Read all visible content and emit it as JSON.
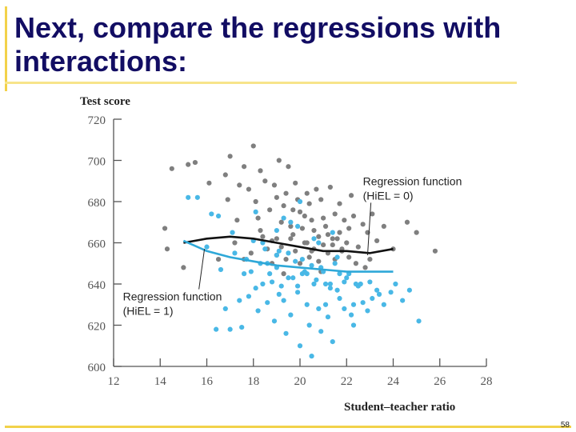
{
  "slide": {
    "title": "Next, compare the regressions with interactions:",
    "page_number": "58"
  },
  "colors": {
    "title": "#120d63",
    "accent": "#f2d24a",
    "hiel0_points": "#7f7f7f",
    "hiel1_points": "#49b8e6",
    "hiel0_line": "#111111",
    "hiel1_line": "#2ea8d8"
  },
  "chart_data": {
    "type": "scatter",
    "xlabel": "Student–teacher ratio",
    "ylabel": "Test score",
    "xlim": [
      12,
      28
    ],
    "ylim": [
      600,
      720
    ],
    "xticks": [
      "12",
      "14",
      "16",
      "18",
      "20",
      "22",
      "24",
      "26",
      "28"
    ],
    "yticks": [
      "600",
      "620",
      "640",
      "660",
      "680",
      "700",
      "720"
    ],
    "grid": false,
    "annotations": [
      {
        "text": "Regression function",
        "text2": "(HiEL = 0)",
        "x": 22.7,
        "y": 688,
        "target_x": 22.9,
        "target_y": 654
      },
      {
        "text": "Regression function",
        "text2": "(HiEL = 1)",
        "x": 12.4,
        "y": 632,
        "target_x": 15.9,
        "target_y": 657
      }
    ],
    "regression_lines": [
      {
        "name": "HiEL = 0",
        "x": [
          15,
          16,
          17,
          18,
          19,
          20,
          21,
          22,
          23,
          24
        ],
        "y": [
          660,
          662,
          663,
          662,
          660,
          658,
          656,
          656,
          655,
          657
        ]
      },
      {
        "name": "HiEL = 1",
        "x": [
          15,
          16,
          17,
          18,
          19,
          20,
          21,
          22,
          23,
          24
        ],
        "y": [
          661,
          656,
          653,
          651,
          649,
          648,
          647,
          646,
          646,
          646
        ]
      }
    ],
    "series": [
      {
        "name": "HiEL = 0",
        "x": [
          14.5,
          15.2,
          15.5,
          14.2,
          16.1,
          16.8,
          17.0,
          17.4,
          17.6,
          17.8,
          18.0,
          18.1,
          18.2,
          18.3,
          18.5,
          18.7,
          18.9,
          19.0,
          19.1,
          19.2,
          19.3,
          19.4,
          19.5,
          19.6,
          19.7,
          19.8,
          19.9,
          20.0,
          20.1,
          20.2,
          20.3,
          20.4,
          20.5,
          20.6,
          20.7,
          20.8,
          20.9,
          21.0,
          21.1,
          21.2,
          21.3,
          21.4,
          21.5,
          21.6,
          21.7,
          21.8,
          21.9,
          22.0,
          22.1,
          22.2,
          22.3,
          22.5,
          22.7,
          22.9,
          23.1,
          23.3,
          23.6,
          24.0,
          24.6,
          25.0,
          25.8,
          14.3,
          15.0,
          16.5,
          17.2,
          17.9,
          18.4,
          18.6,
          18.8,
          19.0,
          19.2,
          19.4,
          19.6,
          19.8,
          20.0,
          20.2,
          20.4,
          20.6,
          20.8,
          21.0,
          21.2,
          21.5,
          21.8,
          22.1,
          22.4,
          23.0,
          18.3,
          19.0,
          19.7,
          20.3,
          17.6,
          18.8,
          20.9,
          21.4,
          22.8,
          16.9,
          17.3,
          19.3,
          20.5,
          21.7
        ],
        "y": [
          696,
          698,
          699,
          667,
          689,
          693,
          702,
          688,
          697,
          686,
          707,
          680,
          672,
          695,
          690,
          676,
          688,
          682,
          700,
          670,
          678,
          684,
          697,
          668,
          676,
          689,
          681,
          675,
          667,
          673,
          684,
          679,
          671,
          666,
          686,
          663,
          681,
          672,
          668,
          664,
          687,
          659,
          674,
          662,
          679,
          656,
          671,
          660,
          667,
          683,
          673,
          658,
          669,
          665,
          674,
          661,
          668,
          657,
          670,
          665,
          656,
          657,
          648,
          652,
          660,
          655,
          663,
          657,
          661,
          654,
          658,
          652,
          662,
          656,
          650,
          660,
          653,
          657,
          651,
          659,
          655,
          652,
          657,
          653,
          650,
          652,
          666,
          662,
          664,
          660,
          652,
          650,
          646,
          662,
          648,
          681,
          671,
          645,
          656,
          665
        ]
      },
      {
        "name": "HiEL = 1",
        "x": [
          15.2,
          15.6,
          16.2,
          16.5,
          16.0,
          16.6,
          17.1,
          17.4,
          17.7,
          17.9,
          18.1,
          18.2,
          18.4,
          18.6,
          18.7,
          18.9,
          19.0,
          19.1,
          19.3,
          19.4,
          19.5,
          19.6,
          19.8,
          19.9,
          20.0,
          20.1,
          20.3,
          20.4,
          20.5,
          20.6,
          20.8,
          20.9,
          21.0,
          21.1,
          21.2,
          21.3,
          21.4,
          21.6,
          21.7,
          21.9,
          22.0,
          22.2,
          22.3,
          22.5,
          22.7,
          22.9,
          23.1,
          23.3,
          23.6,
          23.9,
          24.1,
          24.4,
          24.7,
          25.1,
          16.4,
          17.0,
          17.5,
          17.8,
          18.0,
          18.3,
          18.5,
          18.8,
          19.0,
          19.2,
          19.5,
          19.7,
          19.9,
          20.1,
          20.3,
          20.5,
          20.7,
          20.9,
          21.1,
          21.3,
          21.5,
          21.7,
          21.9,
          22.1,
          22.3,
          22.6,
          23.0,
          23.4,
          18.6,
          19.3,
          19.9,
          20.6,
          21.4,
          18.1,
          19.0,
          20.0,
          20.8,
          21.6,
          22.4,
          16.8,
          17.2,
          17.6,
          18.4,
          19.1,
          19.6,
          20.2
        ],
        "y": [
          682,
          682,
          674,
          673,
          658,
          647,
          665,
          632,
          652,
          646,
          638,
          627,
          660,
          631,
          645,
          622,
          666,
          656,
          632,
          616,
          643,
          625,
          651,
          636,
          610,
          645,
          630,
          620,
          605,
          640,
          628,
          617,
          646,
          630,
          624,
          640,
          612,
          637,
          633,
          628,
          643,
          625,
          620,
          639,
          631,
          627,
          633,
          637,
          630,
          636,
          640,
          632,
          637,
          622,
          618,
          618,
          619,
          634,
          661,
          650,
          657,
          641,
          648,
          639,
          655,
          643,
          639,
          652,
          645,
          649,
          642,
          648,
          640,
          638,
          650,
          645,
          641,
          645,
          630,
          640,
          641,
          635,
          650,
          672,
          668,
          662,
          665,
          675,
          654,
          680,
          660,
          653,
          640,
          628,
          655,
          645,
          640,
          635,
          670,
          646
        ]
      }
    ]
  }
}
